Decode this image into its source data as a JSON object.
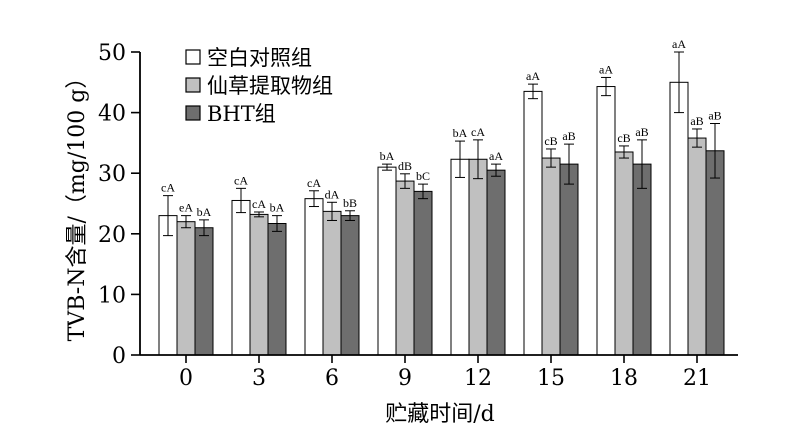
{
  "chart_data": {
    "type": "bar",
    "xlabel": "贮藏时间/d",
    "ylabel": "TVB-N含量/（mg/100 g）",
    "ylim": [
      0,
      50
    ],
    "yticks": [
      0,
      10,
      20,
      30,
      40,
      50
    ],
    "categories": [
      "0",
      "3",
      "6",
      "9",
      "12",
      "15",
      "18",
      "21"
    ],
    "legend_position": "top-left",
    "series": [
      {
        "name": "空白对照组",
        "color": "#ffffff",
        "values": [
          23.0,
          25.5,
          25.8,
          31.0,
          32.3,
          43.5,
          44.3,
          45.0
        ],
        "errors": [
          3.3,
          2.0,
          1.3,
          0.5,
          3.0,
          1.2,
          1.5,
          5.0
        ],
        "labels": [
          "cA",
          "cA",
          "cA",
          "bA",
          "bA",
          "aA",
          "aA",
          "aA"
        ]
      },
      {
        "name": "仙草提取物组",
        "color": "#c0c0c0",
        "values": [
          22.0,
          23.2,
          23.7,
          28.7,
          32.3,
          32.5,
          33.5,
          35.8
        ],
        "errors": [
          1.0,
          0.4,
          1.5,
          1.2,
          3.2,
          1.5,
          1.0,
          1.5
        ],
        "labels": [
          "eA",
          "cA",
          "dA",
          "dB",
          "cA",
          "cB",
          "cB",
          "aB"
        ]
      },
      {
        "name": "BHT组",
        "color": "#6e6e6e",
        "values": [
          21.0,
          21.7,
          23.0,
          27.0,
          30.5,
          31.5,
          31.5,
          33.7
        ],
        "errors": [
          1.3,
          1.3,
          0.8,
          1.2,
          1.0,
          3.3,
          4.0,
          4.5
        ],
        "labels": [
          "bA",
          "bA",
          "bB",
          "bC",
          "aA",
          "aB",
          "aB",
          "aB"
        ]
      }
    ]
  }
}
